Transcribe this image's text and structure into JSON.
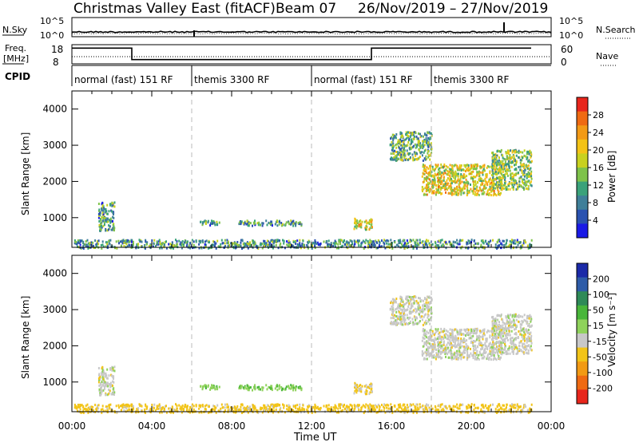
{
  "title": "Christmas Valley East (fitACF)",
  "beam_label": "Beam 07",
  "date_range": "26/Nov/2019 – 27/Nov/2019",
  "left_labels": {
    "nsky": "N.Sky",
    "freq": "Freq.\n[MHz]",
    "cpid": "CPID"
  },
  "right_labels": {
    "nsearch": "N.Search",
    "nave": "Nave"
  },
  "nsky_ticks": [
    "10^5",
    "10^0"
  ],
  "freq_ticks": [
    "18",
    "8"
  ],
  "nave_ticks": [
    "60",
    "0"
  ],
  "cpid_segments": [
    {
      "label": "normal (fast) 151 RF",
      "start_h": 0,
      "end_h": 6
    },
    {
      "label": "themis 3300 RF",
      "start_h": 6,
      "end_h": 12
    },
    {
      "label": "normal (fast) 151 RF",
      "start_h": 12,
      "end_h": 18
    },
    {
      "label": "themis 3300 RF",
      "start_h": 18,
      "end_h": 24
    }
  ],
  "freq_profile_h": [
    [
      0,
      0.82
    ],
    [
      3,
      0.82
    ],
    [
      3,
      0.22
    ],
    [
      15,
      0.22
    ],
    [
      15,
      0.82
    ],
    [
      23,
      0.82
    ]
  ],
  "xlabel": "Time UT",
  "x_ticks": [
    "00:00",
    "04:00",
    "08:00",
    "12:00",
    "16:00",
    "20:00",
    "00:00"
  ],
  "ylabel": "Slant Range [km]",
  "y_ticks": [
    "1000",
    "2000",
    "3000",
    "4000"
  ],
  "colorbars": {
    "power": {
      "label": "Power [dB]",
      "ticks": [
        "4",
        "8",
        "12",
        "16",
        "20",
        "24",
        "28"
      ],
      "colors": [
        "#1a1ae6",
        "#2a52b0",
        "#3f7f99",
        "#3aa27a",
        "#7ec24a",
        "#c8d11f",
        "#f4c316",
        "#f39a16",
        "#ef6a12",
        "#e8261c"
      ]
    },
    "velocity": {
      "label": "Velocity [m s⁻¹]",
      "ticks": [
        "200",
        "100",
        "50",
        "15",
        "-15",
        "-50",
        "-100",
        "-200"
      ],
      "colors": [
        "#1b2aa8",
        "#2e5ca8",
        "#2e8a58",
        "#49b63a",
        "#8fd25b",
        "#c8c8c8",
        "#f2c418",
        "#f29a14",
        "#ef6a12",
        "#e8261c"
      ]
    }
  },
  "chart_data": [
    {
      "type": "heatmap",
      "name": "Power",
      "x_range_hours": [
        0,
        24
      ],
      "ylim": [
        180,
        4500
      ],
      "features": [
        {
          "t0": 0.1,
          "t1": 23.0,
          "r0": 180,
          "r1": 420,
          "value_db": 8
        },
        {
          "t0": 1.3,
          "t1": 2.1,
          "r0": 650,
          "r1": 1450,
          "value_db": 8
        },
        {
          "t0": 6.4,
          "t1": 7.4,
          "r0": 800,
          "r1": 950,
          "value_db": 8
        },
        {
          "t0": 8.3,
          "t1": 11.5,
          "r0": 800,
          "r1": 950,
          "value_db": 8
        },
        {
          "t0": 14.1,
          "t1": 15.0,
          "r0": 700,
          "r1": 1000,
          "value_db": 16
        },
        {
          "t0": 15.9,
          "t1": 18.0,
          "r0": 2600,
          "r1": 3400,
          "value_db": 10
        },
        {
          "t0": 17.5,
          "t1": 21.5,
          "r0": 1650,
          "r1": 2500,
          "value_db": 16
        },
        {
          "t0": 21.0,
          "t1": 23.0,
          "r0": 1800,
          "r1": 2900,
          "value_db": 12
        }
      ]
    },
    {
      "type": "heatmap",
      "name": "Velocity",
      "x_range_hours": [
        0,
        24
      ],
      "ylim": [
        180,
        4500
      ],
      "features": [
        {
          "t0": 0.1,
          "t1": 23.0,
          "r0": 180,
          "r1": 420,
          "value_ms": -30
        },
        {
          "t0": 1.3,
          "t1": 2.1,
          "r0": 650,
          "r1": 1450,
          "value_ms": 0
        },
        {
          "t0": 6.4,
          "t1": 7.4,
          "r0": 800,
          "r1": 950,
          "value_ms": 40
        },
        {
          "t0": 8.3,
          "t1": 11.5,
          "r0": 800,
          "r1": 950,
          "value_ms": 40
        },
        {
          "t0": 14.1,
          "t1": 15.0,
          "r0": 700,
          "r1": 1000,
          "value_ms": -20
        },
        {
          "t0": 15.9,
          "t1": 18.0,
          "r0": 2600,
          "r1": 3400,
          "value_ms": 0
        },
        {
          "t0": 17.5,
          "t1": 21.5,
          "r0": 1650,
          "r1": 2500,
          "value_ms": 0
        },
        {
          "t0": 21.0,
          "t1": 23.0,
          "r0": 1800,
          "r1": 2900,
          "value_ms": 0
        }
      ]
    }
  ]
}
